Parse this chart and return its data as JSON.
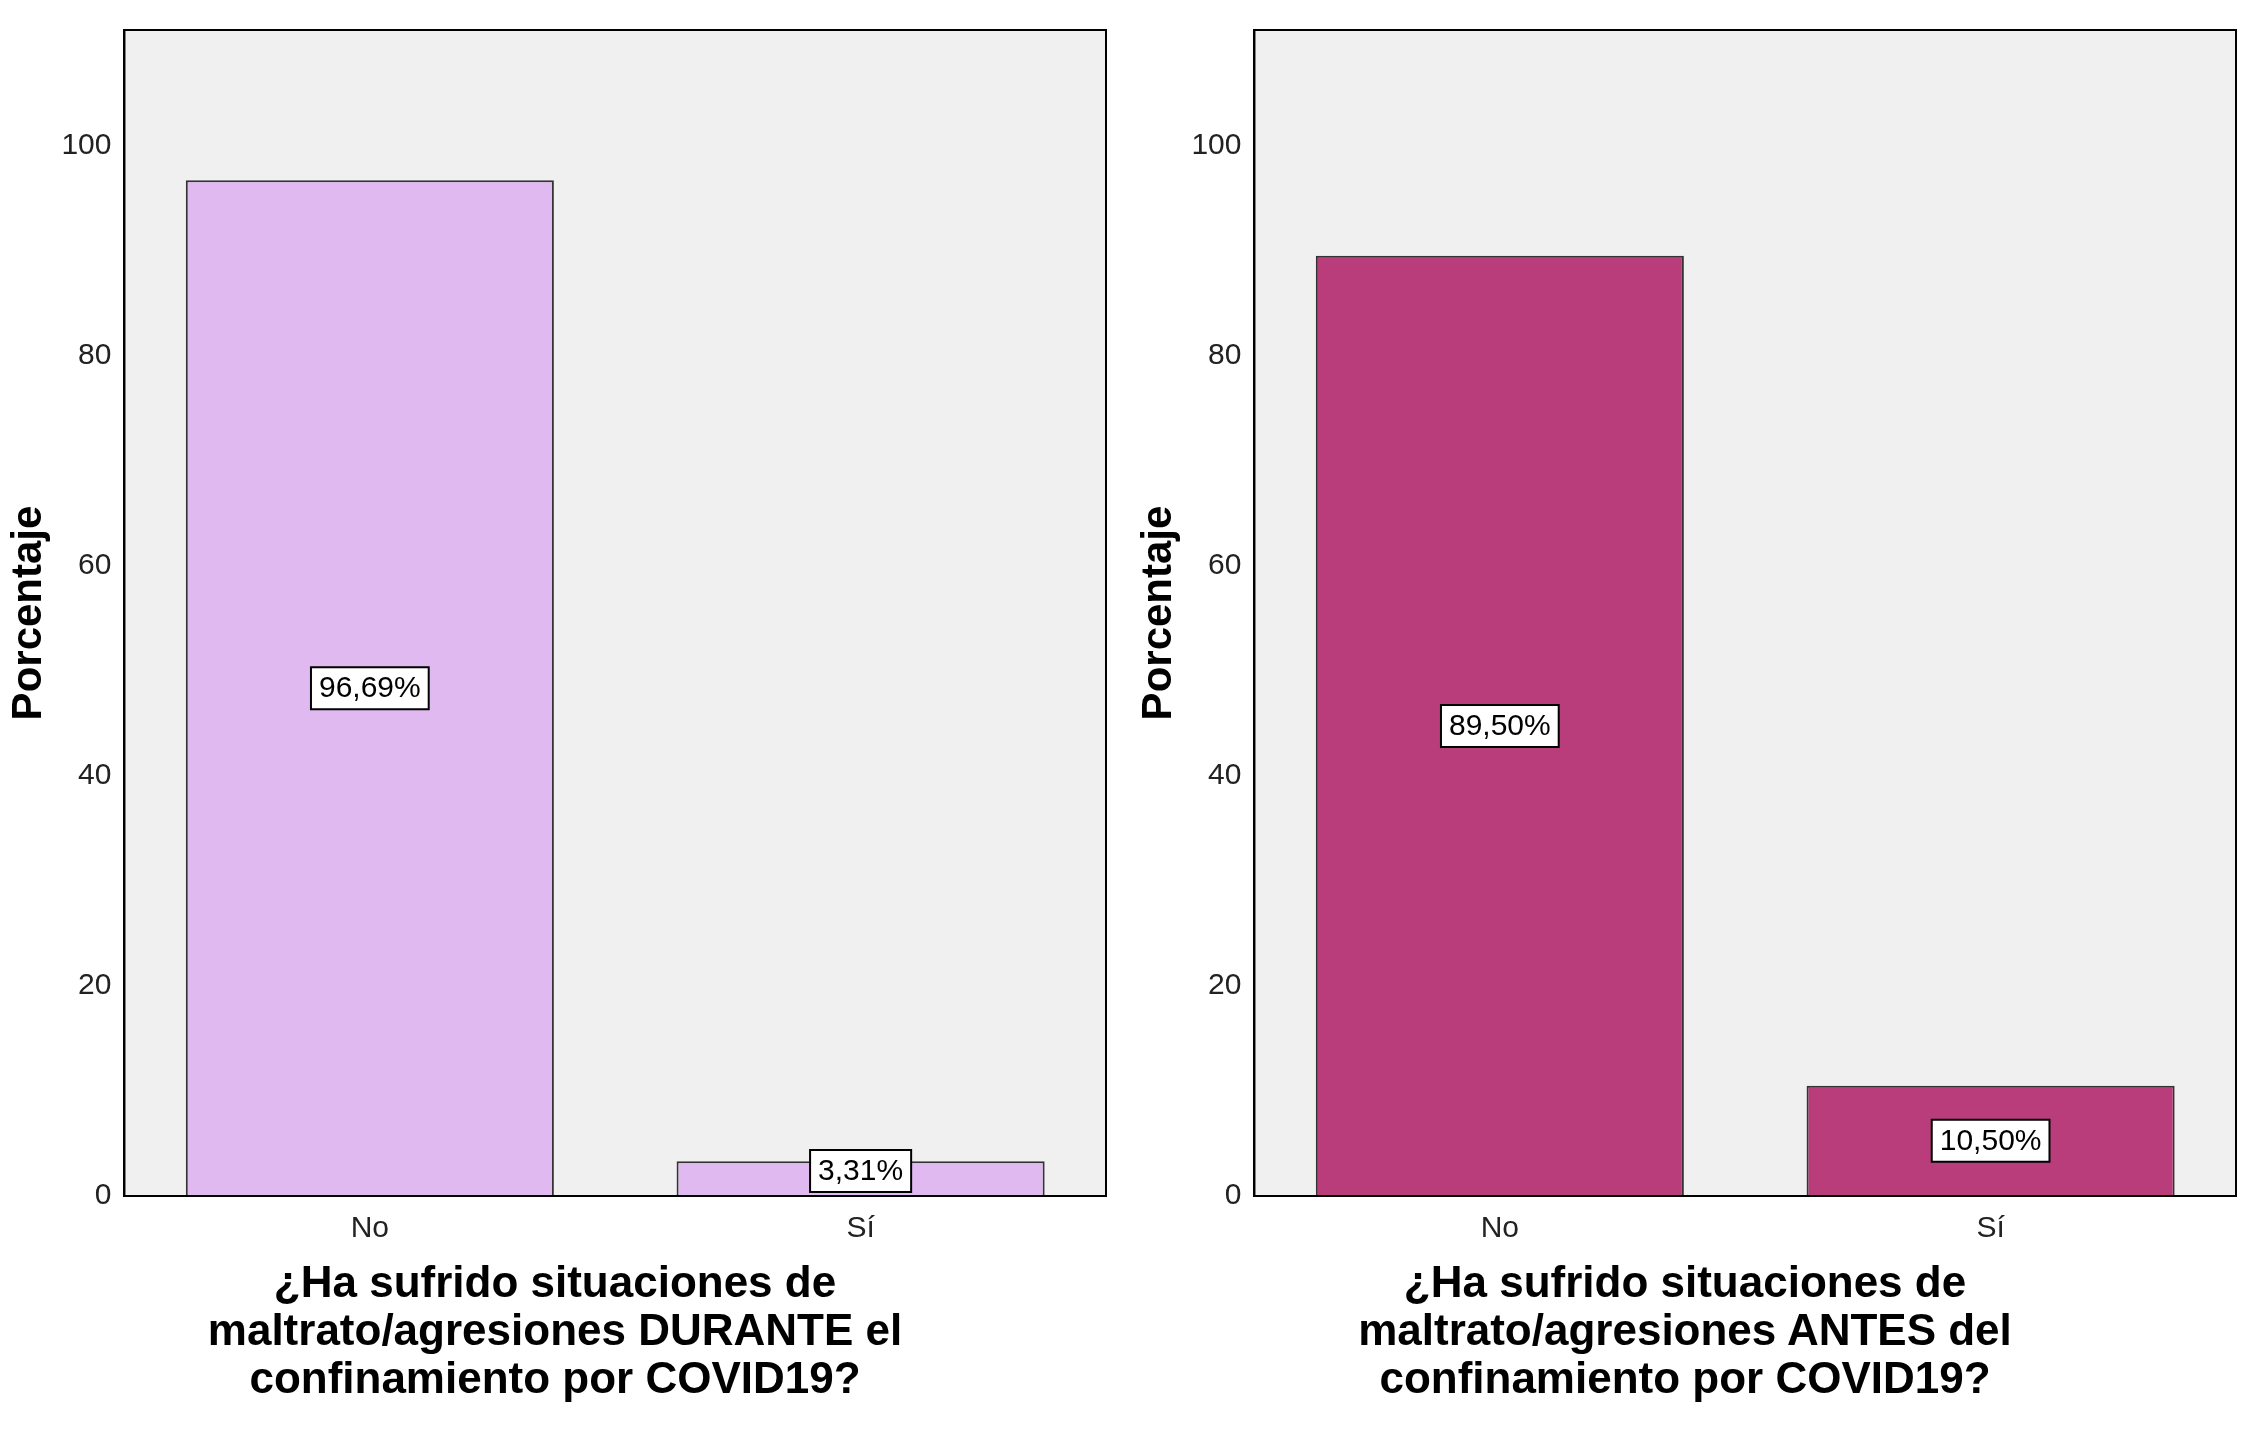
{
  "chart_data": [
    {
      "type": "bar",
      "categories": [
        "No",
        "Sí"
      ],
      "values": [
        96.69,
        3.31
      ],
      "color": "#dfb9f0",
      "value_labels": [
        "96,69%",
        "3,31%"
      ],
      "ylabel": "Porcentaje",
      "xlabel": "¿Ha sufrido situaciones de maltrato/agresiones DURANTE el confinamiento por COVID19?",
      "ylim": [
        0,
        111
      ],
      "yticks": [
        0,
        20,
        40,
        60,
        80,
        100
      ]
    },
    {
      "type": "bar",
      "categories": [
        "No",
        "Sí"
      ],
      "values": [
        89.5,
        10.5
      ],
      "color": "#b93d7b",
      "value_labels": [
        "89,50%",
        "10,50%"
      ],
      "ylabel": "Porcentaje",
      "xlabel": "¿Ha sufrido situaciones de maltrato/agresiones ANTES del confinamiento por COVID19?",
      "ylim": [
        0,
        111
      ],
      "yticks": [
        0,
        20,
        40,
        60,
        80,
        100
      ]
    }
  ]
}
